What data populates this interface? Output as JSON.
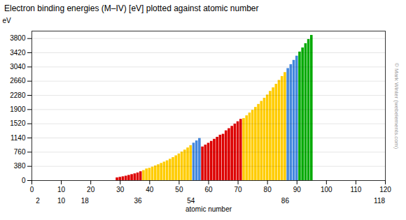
{
  "chart_data": {
    "type": "bar",
    "title": "Electron binding energies (M–IV) [eV] plotted against atomic number",
    "xlabel": "atomic number",
    "ylabel": "eV",
    "x": [
      29,
      30,
      31,
      32,
      33,
      34,
      35,
      36,
      37,
      38,
      39,
      40,
      41,
      42,
      43,
      44,
      45,
      46,
      47,
      48,
      49,
      50,
      51,
      52,
      53,
      54,
      55,
      56,
      57,
      58,
      59,
      60,
      61,
      62,
      63,
      64,
      65,
      66,
      67,
      68,
      69,
      70,
      71,
      72,
      73,
      74,
      75,
      76,
      77,
      78,
      79,
      80,
      81,
      82,
      83,
      84,
      85,
      86,
      87,
      88,
      89,
      90,
      91,
      92,
      93,
      94,
      95
    ],
    "values": [
      74.1,
      88.6,
      103.5,
      120.4,
      140.5,
      161.9,
      182.0,
      205.0,
      238.5,
      269.1,
      312.4,
      330.5,
      363.0,
      394.0,
      425.0,
      461.0,
      496.2,
      531.5,
      573.0,
      617.7,
      664.3,
      714.4,
      765.6,
      818.7,
      874.6,
      937.0,
      1003.3,
      1063.4,
      1128.1,
      901.3,
      951.1,
      999.9,
      1051.5,
      1106.0,
      1160.6,
      1217.0,
      1241.2,
      1333.0,
      1391.5,
      1453.3,
      1514.6,
      1576.3,
      1639.4,
      1661.7,
      1735.1,
      1809.2,
      1882.9,
      1960.1,
      2040.4,
      2121.6,
      2205.7,
      2291.6,
      2389.3,
      2484.0,
      2579.6,
      2683.0,
      2787.0,
      2892.4,
      3000.0,
      3104.9,
      3219.0,
      3332.0,
      3441.8,
      3551.7,
      3665.8,
      3778.0,
      3886.9
    ],
    "colors": [
      "#dd0000",
      "#dd0000",
      "#dd0000",
      "#dd0000",
      "#dd0000",
      "#dd0000",
      "#dd0000",
      "#dd0000",
      "#dd0000",
      "#ffcc00",
      "#ffcc00",
      "#ffcc00",
      "#ffcc00",
      "#ffcc00",
      "#ffcc00",
      "#ffcc00",
      "#ffcc00",
      "#ffcc00",
      "#ffcc00",
      "#ffcc00",
      "#ffcc00",
      "#ffcc00",
      "#ffcc00",
      "#ffcc00",
      "#ffcc00",
      "#ffcc00",
      "#4488dd",
      "#4488dd",
      "#4488dd",
      "#dd0000",
      "#dd0000",
      "#dd0000",
      "#dd0000",
      "#dd0000",
      "#dd0000",
      "#dd0000",
      "#dd0000",
      "#dd0000",
      "#dd0000",
      "#dd0000",
      "#dd0000",
      "#dd0000",
      "#dd0000",
      "#ffcc00",
      "#ffcc00",
      "#ffcc00",
      "#ffcc00",
      "#ffcc00",
      "#ffcc00",
      "#ffcc00",
      "#ffcc00",
      "#ffcc00",
      "#ffcc00",
      "#ffcc00",
      "#ffcc00",
      "#ffcc00",
      "#ffcc00",
      "#ffcc00",
      "#4488dd",
      "#4488dd",
      "#4488dd",
      "#4488dd",
      "#00aa00",
      "#00aa00",
      "#00aa00",
      "#00aa00",
      "#00aa00"
    ],
    "xlim": [
      0,
      120
    ],
    "xticks": [
      0,
      10,
      20,
      30,
      40,
      50,
      60,
      70,
      80,
      90,
      100,
      110,
      120
    ],
    "x2lim": [
      0,
      120
    ],
    "x2ticks": [
      2,
      10,
      18,
      36,
      54,
      86,
      118
    ],
    "ylim": [
      0,
      4000
    ],
    "yticks": [
      0,
      380,
      760,
      1140,
      1520,
      1900,
      2280,
      2660,
      3040,
      3420,
      3800
    ],
    "grid": true,
    "annotations": [
      {
        "text": "© Mark Winter (webelements.com)"
      }
    ]
  }
}
